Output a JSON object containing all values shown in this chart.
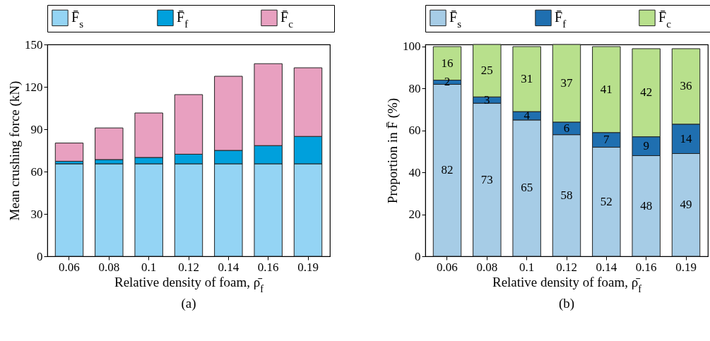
{
  "chart_data": [
    {
      "type": "bar",
      "stacked": true,
      "categories": [
        "0.06",
        "0.08",
        "0.1",
        "0.12",
        "0.14",
        "0.16",
        "0.19"
      ],
      "xlabel": "Relative density of foam, ρ̄$_{f}$",
      "ylabel": "Mean crushing force (kN)",
      "ylim": [
        0,
        150
      ],
      "yticks": [
        0,
        30,
        60,
        90,
        120,
        150
      ],
      "legend": "top",
      "annotations": [
        "(a)"
      ],
      "series": [
        {
          "name": "F̄$_{s}$",
          "color": "#94d4f4",
          "values": [
            65.5,
            65.5,
            65.5,
            65.5,
            65.5,
            65.5,
            65.5
          ]
        },
        {
          "name": "F̄$_{f}$",
          "color": "#00a0dc",
          "values": [
            1.8,
            3,
            4.5,
            6.8,
            9.5,
            12.9,
            19.4
          ]
        },
        {
          "name": "F̄$_{c}$",
          "color": "#e8a0c0",
          "values": [
            12.9,
            22.4,
            31.5,
            42.2,
            52.5,
            58,
            48.6
          ]
        }
      ]
    },
    {
      "type": "bar",
      "stacked": true,
      "data_labels": true,
      "categories": [
        "0.06",
        "0.08",
        "0.1",
        "0.12",
        "0.14",
        "0.16",
        "0.19"
      ],
      "xlabel": "Relative density of foam, ρ̄$_{f}$",
      "ylabel": "Proportion in F̄ (%)",
      "ylim": [
        0,
        101
      ],
      "yticks": [
        0,
        20,
        40,
        60,
        80,
        100
      ],
      "legend": "top",
      "annotations": [
        "(b)"
      ],
      "series": [
        {
          "name": "F̄$_{s}$",
          "color": "#a6cce6",
          "values": [
            82,
            73,
            65,
            58,
            52,
            48,
            49
          ]
        },
        {
          "name": "F̄$_{f}$",
          "color": "#1f6fb0",
          "values": [
            2,
            3,
            4,
            6,
            7,
            9,
            14
          ]
        },
        {
          "name": "F̄$_{c}$",
          "color": "#b8e08c",
          "values": [
            16,
            25,
            31,
            37,
            41,
            42,
            36
          ]
        }
      ]
    }
  ]
}
